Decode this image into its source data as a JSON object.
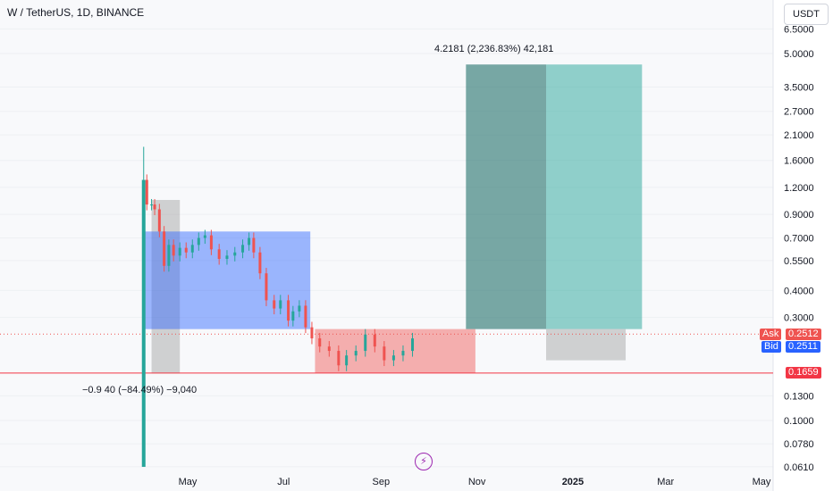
{
  "header": {
    "symbol": "W / TetherUS, 1D, BINANCE",
    "currency": "USDT"
  },
  "badges": {
    "ask_label": "Ask",
    "ask_value": "0.2512",
    "bid_label": "Bid",
    "bid_value": "0.2511",
    "level_value": "0.1659"
  },
  "annotations": {
    "short_projection": "−0.9 40 (−84.49%) −9,040",
    "long_projection": "4.2181 (2,236.83%) 42,181"
  },
  "icons": {
    "flash": "lightning-icon"
  },
  "colors": {
    "up": "#26a69a",
    "down": "#ef5350",
    "accent_blue": "#2962ff",
    "level_red": "#f23645"
  },
  "chart_data": {
    "type": "candlestick",
    "y_scale": "log",
    "y_ticks": [
      "6.5000",
      "5.0000",
      "3.5000",
      "2.7000",
      "2.1000",
      "1.6000",
      "1.2000",
      "0.9000",
      "0.7000",
      "0.5500",
      "0.4000",
      "0.3000",
      "0.1300",
      "0.1000",
      "0.0780",
      "0.0610"
    ],
    "x_ticks": [
      "May",
      "Jul",
      "Sep",
      "Nov",
      "2025",
      "Mar",
      "May"
    ],
    "grid": true,
    "price_series": [
      {
        "date": "2024-04-03",
        "close": 1.3
      },
      {
        "date": "2024-04-05",
        "close": 1.0
      },
      {
        "date": "2024-04-08",
        "close": 1.0
      },
      {
        "date": "2024-04-10",
        "close": 0.95
      },
      {
        "date": "2024-04-13",
        "close": 0.75
      },
      {
        "date": "2024-04-16",
        "close": 0.52
      },
      {
        "date": "2024-04-19",
        "close": 0.65
      },
      {
        "date": "2024-04-22",
        "close": 0.58
      },
      {
        "date": "2024-04-26",
        "close": 0.63
      },
      {
        "date": "2024-04-30",
        "close": 0.6
      },
      {
        "date": "2024-05-04",
        "close": 0.65
      },
      {
        "date": "2024-05-08",
        "close": 0.7
      },
      {
        "date": "2024-05-12",
        "close": 0.72
      },
      {
        "date": "2024-05-16",
        "close": 0.62
      },
      {
        "date": "2024-05-21",
        "close": 0.56
      },
      {
        "date": "2024-05-26",
        "close": 0.58
      },
      {
        "date": "2024-05-31",
        "close": 0.6
      },
      {
        "date": "2024-06-05",
        "close": 0.65
      },
      {
        "date": "2024-06-09",
        "close": 0.7
      },
      {
        "date": "2024-06-12",
        "close": 0.6
      },
      {
        "date": "2024-06-16",
        "close": 0.48
      },
      {
        "date": "2024-06-20",
        "close": 0.36
      },
      {
        "date": "2024-06-25",
        "close": 0.33
      },
      {
        "date": "2024-06-29",
        "close": 0.36
      },
      {
        "date": "2024-07-04",
        "close": 0.29
      },
      {
        "date": "2024-07-07",
        "close": 0.32
      },
      {
        "date": "2024-07-11",
        "close": 0.34
      },
      {
        "date": "2024-07-15",
        "close": 0.27
      },
      {
        "date": "2024-07-19",
        "close": 0.24
      },
      {
        "date": "2024-07-24",
        "close": 0.22
      },
      {
        "date": "2024-07-30",
        "close": 0.21
      },
      {
        "date": "2024-08-05",
        "close": 0.18
      },
      {
        "date": "2024-08-10",
        "close": 0.2
      },
      {
        "date": "2024-08-16",
        "close": 0.21
      },
      {
        "date": "2024-08-22",
        "close": 0.25
      },
      {
        "date": "2024-08-28",
        "close": 0.22
      },
      {
        "date": "2024-09-03",
        "close": 0.19
      },
      {
        "date": "2024-09-09",
        "close": 0.2
      },
      {
        "date": "2024-09-15",
        "close": 0.21
      },
      {
        "date": "2024-09-21",
        "close": 0.24
      }
    ],
    "initial_spike": {
      "date": "2024-04-03",
      "high": 1.85,
      "low": 0.061
    },
    "zones": [
      {
        "kind": "gray",
        "start": "2024-04-08",
        "end": "2024-04-26",
        "top": 1.05,
        "bottom": 0.165
      },
      {
        "kind": "blue",
        "start": "2024-04-03",
        "end": "2024-07-18",
        "top": 0.75,
        "bottom": 0.265
      },
      {
        "kind": "red",
        "start": "2024-07-21",
        "end": "2024-10-31",
        "top": 0.265,
        "bottom": 0.1659
      },
      {
        "kind": "teal-dark",
        "start": "2024-10-25",
        "end": "2024-12-15",
        "top": 4.45,
        "bottom": 0.265
      },
      {
        "kind": "teal-light",
        "start": "2024-12-15",
        "end": "2025-02-14",
        "top": 4.45,
        "bottom": 0.265
      },
      {
        "kind": "gray",
        "start": "2024-12-15",
        "end": "2024-12-15",
        "top": 0.265,
        "bottom": 0.19
      }
    ],
    "levels": {
      "ask": 0.2512,
      "bid": 0.2511,
      "support": 0.1659
    }
  }
}
